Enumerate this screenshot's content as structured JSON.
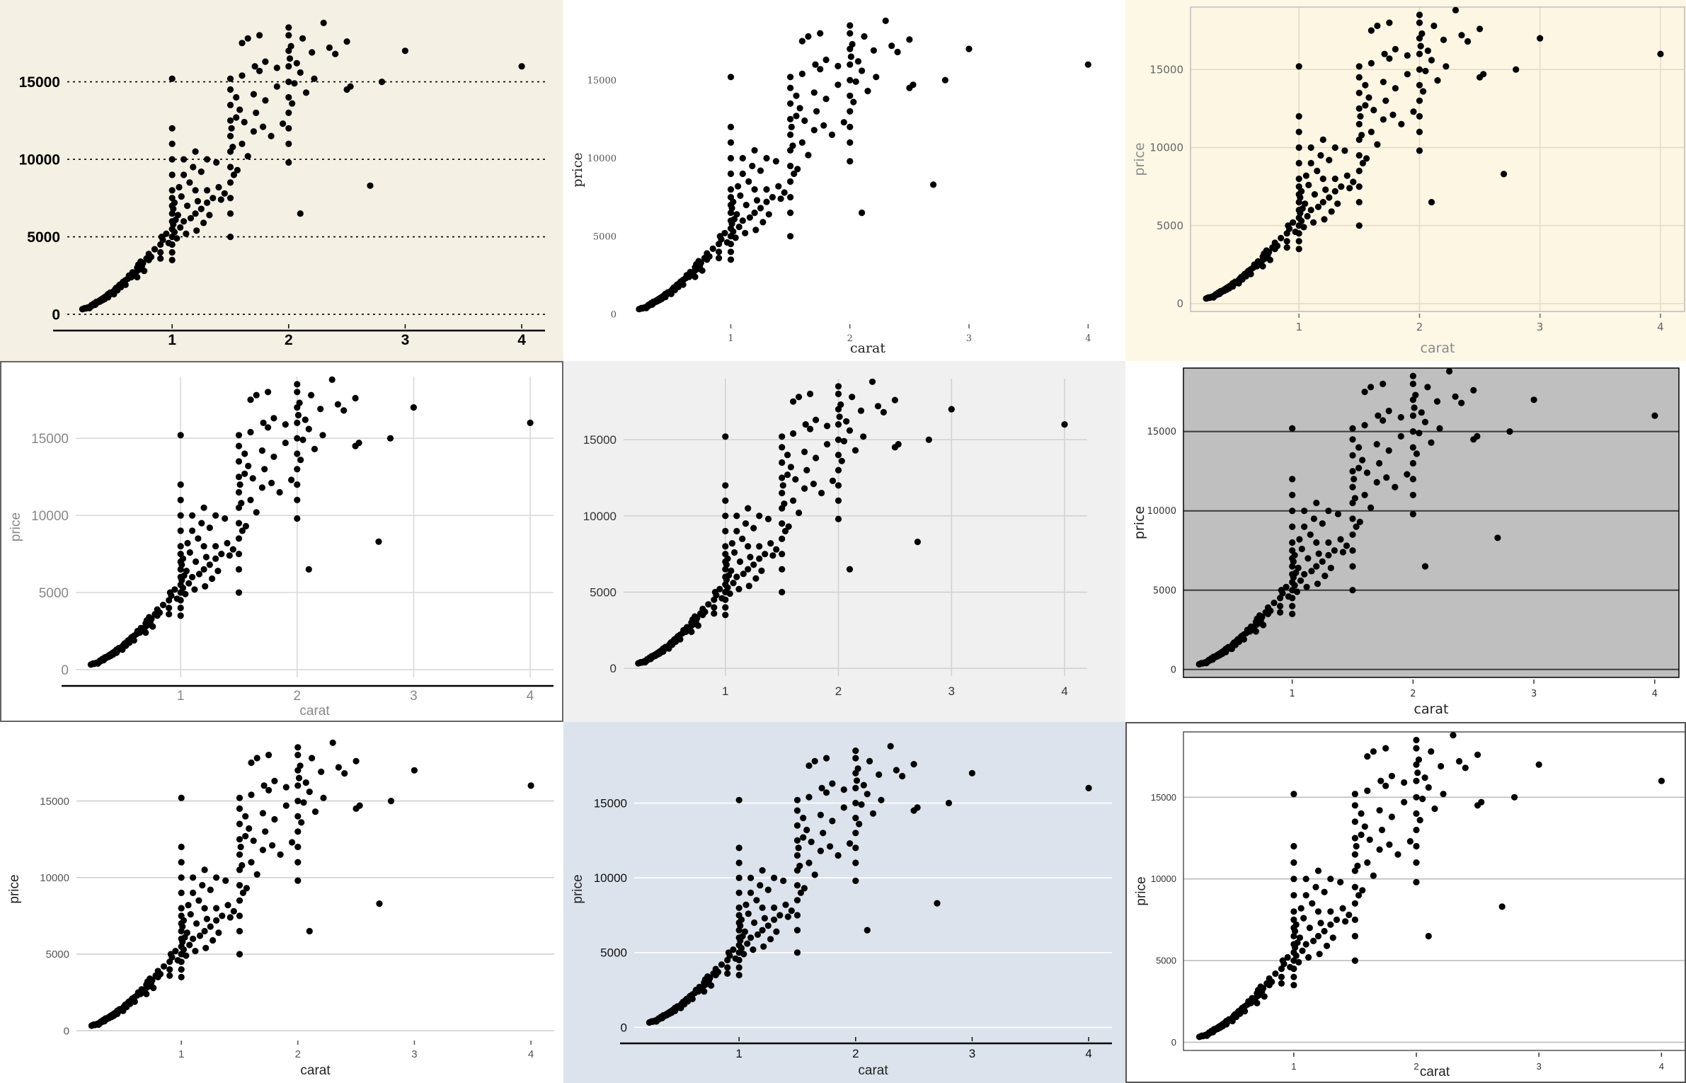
{
  "layout": {
    "cols": 3,
    "rows": 3
  },
  "points": [
    [
      0.23,
      330
    ],
    [
      0.24,
      360
    ],
    [
      0.25,
      400
    ],
    [
      0.26,
      380
    ],
    [
      0.27,
      420
    ],
    [
      0.28,
      450
    ],
    [
      0.29,
      400
    ],
    [
      0.3,
      480
    ],
    [
      0.3,
      520
    ],
    [
      0.31,
      550
    ],
    [
      0.31,
      600
    ],
    [
      0.32,
      580
    ],
    [
      0.33,
      650
    ],
    [
      0.33,
      700
    ],
    [
      0.34,
      620
    ],
    [
      0.35,
      720
    ],
    [
      0.35,
      800
    ],
    [
      0.36,
      760
    ],
    [
      0.37,
      850
    ],
    [
      0.38,
      900
    ],
    [
      0.38,
      820
    ],
    [
      0.39,
      950
    ],
    [
      0.4,
      1000
    ],
    [
      0.4,
      900
    ],
    [
      0.41,
      1050
    ],
    [
      0.42,
      1100
    ],
    [
      0.42,
      980
    ],
    [
      0.43,
      1150
    ],
    [
      0.44,
      1200
    ],
    [
      0.45,
      1100
    ],
    [
      0.45,
      1300
    ],
    [
      0.46,
      1250
    ],
    [
      0.47,
      1400
    ],
    [
      0.48,
      1350
    ],
    [
      0.5,
      1500
    ],
    [
      0.5,
      1300
    ],
    [
      0.51,
      1600
    ],
    [
      0.52,
      1700
    ],
    [
      0.53,
      1550
    ],
    [
      0.54,
      1800
    ],
    [
      0.55,
      1900
    ],
    [
      0.56,
      1750
    ],
    [
      0.57,
      2000
    ],
    [
      0.58,
      2100
    ],
    [
      0.6,
      2200
    ],
    [
      0.6,
      1900
    ],
    [
      0.62,
      2300
    ],
    [
      0.63,
      2500
    ],
    [
      0.65,
      2400
    ],
    [
      0.66,
      2700
    ],
    [
      0.68,
      2600
    ],
    [
      0.7,
      2800
    ],
    [
      0.7,
      3000
    ],
    [
      0.7,
      2400
    ],
    [
      0.71,
      3200
    ],
    [
      0.72,
      2900
    ],
    [
      0.73,
      3400
    ],
    [
      0.74,
      3100
    ],
    [
      0.75,
      3300
    ],
    [
      0.76,
      2800
    ],
    [
      0.78,
      3600
    ],
    [
      0.8,
      3500
    ],
    [
      0.8,
      3900
    ],
    [
      0.82,
      3700
    ],
    [
      0.85,
      4200
    ],
    [
      0.9,
      4000
    ],
    [
      0.9,
      4500
    ],
    [
      0.9,
      3600
    ],
    [
      0.91,
      5000
    ],
    [
      0.92,
      4800
    ],
    [
      0.95,
      5200
    ],
    [
      0.97,
      4600
    ],
    [
      1.0,
      5000
    ],
    [
      1.0,
      5500
    ],
    [
      1.0,
      6000
    ],
    [
      1.0,
      6500
    ],
    [
      1.0,
      7000
    ],
    [
      1.0,
      7500
    ],
    [
      1.0,
      4500
    ],
    [
      1.0,
      4000
    ],
    [
      1.0,
      3500
    ],
    [
      1.0,
      8000
    ],
    [
      1.0,
      9000
    ],
    [
      1.0,
      10000
    ],
    [
      1.0,
      11000
    ],
    [
      1.0,
      12000
    ],
    [
      1.0,
      15200
    ],
    [
      1.01,
      5800
    ],
    [
      1.01,
      6800
    ],
    [
      1.02,
      5300
    ],
    [
      1.02,
      7200
    ],
    [
      1.03,
      6100
    ],
    [
      1.04,
      4900
    ],
    [
      1.05,
      6400
    ],
    [
      1.06,
      8200
    ],
    [
      1.07,
      5600
    ],
    [
      1.08,
      7600
    ],
    [
      1.1,
      6000
    ],
    [
      1.1,
      9000
    ],
    [
      1.1,
      10000
    ],
    [
      1.12,
      5200
    ],
    [
      1.13,
      7000
    ],
    [
      1.15,
      8500
    ],
    [
      1.16,
      6200
    ],
    [
      1.18,
      9500
    ],
    [
      1.2,
      6500
    ],
    [
      1.2,
      8000
    ],
    [
      1.2,
      10500
    ],
    [
      1.21,
      5400
    ],
    [
      1.22,
      7300
    ],
    [
      1.25,
      6800
    ],
    [
      1.25,
      9200
    ],
    [
      1.27,
      5900
    ],
    [
      1.3,
      8000
    ],
    [
      1.3,
      7200
    ],
    [
      1.3,
      10000
    ],
    [
      1.32,
      6400
    ],
    [
      1.35,
      7500
    ],
    [
      1.38,
      9800
    ],
    [
      1.4,
      8200
    ],
    [
      1.42,
      7400
    ],
    [
      1.45,
      7800
    ],
    [
      1.5,
      7500
    ],
    [
      1.5,
      8500
    ],
    [
      1.5,
      9500
    ],
    [
      1.5,
      10500
    ],
    [
      1.5,
      11500
    ],
    [
      1.5,
      12500
    ],
    [
      1.5,
      13500
    ],
    [
      1.5,
      14500
    ],
    [
      1.5,
      15200
    ],
    [
      1.5,
      6500
    ],
    [
      1.5,
      5000
    ],
    [
      1.51,
      12000
    ],
    [
      1.52,
      10800
    ],
    [
      1.53,
      9000
    ],
    [
      1.55,
      12700
    ],
    [
      1.55,
      14000
    ],
    [
      1.56,
      9300
    ],
    [
      1.58,
      13200
    ],
    [
      1.6,
      11000
    ],
    [
      1.6,
      15400
    ],
    [
      1.6,
      17500
    ],
    [
      1.62,
      12400
    ],
    [
      1.65,
      10200
    ],
    [
      1.65,
      17800
    ],
    [
      1.7,
      11800
    ],
    [
      1.7,
      14200
    ],
    [
      1.71,
      16000
    ],
    [
      1.72,
      13000
    ],
    [
      1.75,
      15700
    ],
    [
      1.75,
      18000
    ],
    [
      1.78,
      12100
    ],
    [
      1.8,
      13800
    ],
    [
      1.8,
      16300
    ],
    [
      1.85,
      11500
    ],
    [
      1.9,
      14700
    ],
    [
      1.9,
      15900
    ],
    [
      1.95,
      12300
    ],
    [
      2.0,
      9800
    ],
    [
      2.0,
      11000
    ],
    [
      2.0,
      12000
    ],
    [
      2.0,
      13000
    ],
    [
      2.0,
      14000
    ],
    [
      2.0,
      15000
    ],
    [
      2.0,
      16000
    ],
    [
      2.0,
      17000
    ],
    [
      2.0,
      18000
    ],
    [
      2.0,
      18500
    ],
    [
      2.01,
      16500
    ],
    [
      2.02,
      17300
    ],
    [
      2.03,
      13600
    ],
    [
      2.05,
      14900
    ],
    [
      2.07,
      16200
    ],
    [
      2.1,
      6500
    ],
    [
      2.1,
      15600
    ],
    [
      2.12,
      17800
    ],
    [
      2.15,
      14300
    ],
    [
      2.2,
      16900
    ],
    [
      2.22,
      15200
    ],
    [
      2.3,
      18800
    ],
    [
      2.35,
      17200
    ],
    [
      2.4,
      16800
    ],
    [
      2.5,
      17600
    ],
    [
      2.5,
      14500
    ],
    [
      2.53,
      14700
    ],
    [
      2.7,
      8300
    ],
    [
      2.8,
      15000
    ],
    [
      3.0,
      17000
    ],
    [
      4.0,
      16000
    ]
  ],
  "panels": [
    {
      "bg": "#f4f0e4",
      "border": "none",
      "plot_bg": "none",
      "plot_border": "none",
      "xlabel": "",
      "ylabel": "",
      "xticks": [
        "1",
        "2",
        "3",
        "4"
      ],
      "yticks": [
        "0",
        "5000",
        "10000",
        "15000"
      ],
      "tick_color": "#000000",
      "tick_font": "Liberation Sans",
      "tick_weight": "bold",
      "tick_size": 21,
      "hgrid": "#000000",
      "hgrid_dash": "3,5",
      "vgrid": "none",
      "xaxis_line": "#000000",
      "xtickmarks": true,
      "xrange": [
        0.1,
        4.2
      ],
      "yrange": [
        -500,
        19000
      ]
    },
    {
      "bg": "#ffffff",
      "border": "none",
      "plot_bg": "none",
      "plot_border": "none",
      "xlabel": "carat",
      "ylabel": "price",
      "xticks": [
        "1",
        "2",
        "3",
        "4"
      ],
      "yticks": [
        "0",
        "5000",
        "10000",
        "15000"
      ],
      "tick_color": "#555555",
      "tick_font": "DejaVu Serif",
      "tick_weight": "normal",
      "tick_size": 13,
      "label_color": "#222222",
      "label_font": "DejaVu Serif",
      "hgrid": "none",
      "vgrid": "none",
      "xaxis_line": "none",
      "xtickmarks": true,
      "xrange": [
        0.1,
        4.2
      ],
      "yrange": [
        -500,
        19000
      ]
    },
    {
      "bg": "#fdf7e6",
      "border": "none",
      "plot_bg": "#fdf6e3",
      "plot_border": "#bdbdbd",
      "xlabel": "carat",
      "ylabel": "price",
      "xticks": [
        "1",
        "2",
        "3",
        "4"
      ],
      "yticks": [
        "0",
        "5000",
        "10000",
        "15000"
      ],
      "tick_color": "#666666",
      "tick_font": "DejaVu Sans",
      "tick_weight": "normal",
      "tick_size": 15,
      "label_color": "#8a8a8a",
      "label_font": "DejaVu Sans",
      "hgrid": "#e4dcc4",
      "vgrid": "#e4dcc4",
      "xaxis_line": "none",
      "xtickmarks": true,
      "xrange": [
        0.1,
        4.2
      ],
      "yrange": [
        -500,
        19000
      ]
    },
    {
      "bg": "#ffffff",
      "border": "#666666",
      "plot_bg": "none",
      "plot_border": "none",
      "xlabel": "carat",
      "ylabel": "price",
      "xticks": [
        "1",
        "2",
        "3",
        "4"
      ],
      "yticks": [
        "0",
        "5000",
        "10000",
        "15000"
      ],
      "tick_color": "#888888",
      "tick_font": "Liberation Sans",
      "tick_weight": "normal",
      "tick_size": 19,
      "label_color": "#888888",
      "label_font": "Liberation Sans",
      "hgrid": "#d9d9d9",
      "vgrid": "#d9d9d9",
      "xaxis_line": "#000000",
      "xtickmarks": false,
      "xrange": [
        0.1,
        4.2
      ],
      "yrange": [
        -500,
        19000
      ]
    },
    {
      "bg": "#f0f0f0",
      "border": "none",
      "plot_bg": "none",
      "plot_border": "none",
      "xlabel": "",
      "ylabel": "",
      "xticks": [
        "1",
        "2",
        "3",
        "4"
      ],
      "yticks": [
        "0",
        "5000",
        "10000",
        "15000"
      ],
      "tick_color": "#333333",
      "tick_font": "Liberation Sans",
      "tick_weight": "normal",
      "tick_size": 17,
      "hgrid": "#d2d2d2",
      "vgrid": "#d2d2d2",
      "xaxis_line": "none",
      "xtickmarks": false,
      "xrange": [
        0.1,
        4.2
      ],
      "yrange": [
        -500,
        19000
      ]
    },
    {
      "bg": "#ffffff",
      "border": "none",
      "plot_bg": "#bfbfbf",
      "plot_border": "#000000",
      "xlabel": "carat",
      "ylabel": "price",
      "xticks": [
        "1",
        "2",
        "3",
        "4"
      ],
      "yticks": [
        "0",
        "5000",
        "10000",
        "15000"
      ],
      "tick_color": "#333333",
      "tick_font": "DejaVu Sans",
      "tick_weight": "normal",
      "tick_size": 13,
      "label_color": "#222222",
      "label_font": "DejaVu Sans",
      "hgrid": "#3a3a3a",
      "vgrid": "none",
      "xaxis_line": "none",
      "xtickmarks": true,
      "xrange": [
        0.1,
        4.2
      ],
      "yrange": [
        -500,
        19000
      ]
    },
    {
      "bg": "#ffffff",
      "border": "none",
      "plot_bg": "none",
      "plot_border": "none",
      "xlabel": "carat",
      "ylabel": "price",
      "xticks": [
        "1",
        "2",
        "3",
        "4"
      ],
      "yticks": [
        "0",
        "5000",
        "10000",
        "15000"
      ],
      "tick_color": "#555555",
      "tick_font": "Liberation Sans",
      "tick_weight": "normal",
      "tick_size": 15,
      "label_color": "#222222",
      "label_font": "Liberation Sans",
      "hgrid": "#d0d0d0",
      "vgrid": "none",
      "xaxis_line": "none",
      "xtickmarks": true,
      "xrange": [
        0.1,
        4.2
      ],
      "yrange": [
        -500,
        19000
      ]
    },
    {
      "bg": "#dce3ec",
      "border": "none",
      "plot_bg": "none",
      "plot_border": "none",
      "xlabel": "carat",
      "ylabel": "price",
      "xticks": [
        "1",
        "2",
        "3",
        "4"
      ],
      "yticks": [
        "0",
        "5000",
        "10000",
        "15000"
      ],
      "tick_color": "#111111",
      "tick_font": "Liberation Sans",
      "tick_weight": "normal",
      "tick_size": 17,
      "label_color": "#222222",
      "label_font": "Liberation Sans",
      "hgrid": "#ffffff",
      "vgrid": "none",
      "xaxis_line": "#000000",
      "xtickmarks": true,
      "xrange": [
        0.1,
        4.2
      ],
      "yrange": [
        -500,
        19000
      ]
    },
    {
      "bg": "#ffffff",
      "border": "#555555",
      "plot_bg": "none",
      "plot_border": "#555555",
      "xlabel": "carat",
      "ylabel": "price",
      "xticks": [
        "1",
        "2",
        "3",
        "4"
      ],
      "yticks": [
        "0",
        "5000",
        "10000",
        "15000"
      ],
      "tick_color": "#333333",
      "tick_font": "Liberation Sans",
      "tick_weight": "normal",
      "tick_size": 13,
      "label_color": "#222222",
      "label_font": "Liberation Sans",
      "hgrid": "#bdbdbd",
      "vgrid": "none",
      "xaxis_line": "none",
      "xtickmarks": true,
      "xrange": [
        0.1,
        4.2
      ],
      "yrange": [
        -500,
        19000
      ]
    }
  ],
  "chart_data": {
    "type": "scatter",
    "panel_count": 9,
    "xlabel": "carat",
    "ylabel": "price",
    "xlim": [
      0.1,
      4.2
    ],
    "ylim": [
      -500,
      19000
    ],
    "x_ticks": [
      1,
      2,
      3,
      4
    ],
    "y_ticks": [
      0,
      5000,
      10000,
      15000
    ],
    "series": [
      {
        "values_ref": "points"
      }
    ]
  }
}
